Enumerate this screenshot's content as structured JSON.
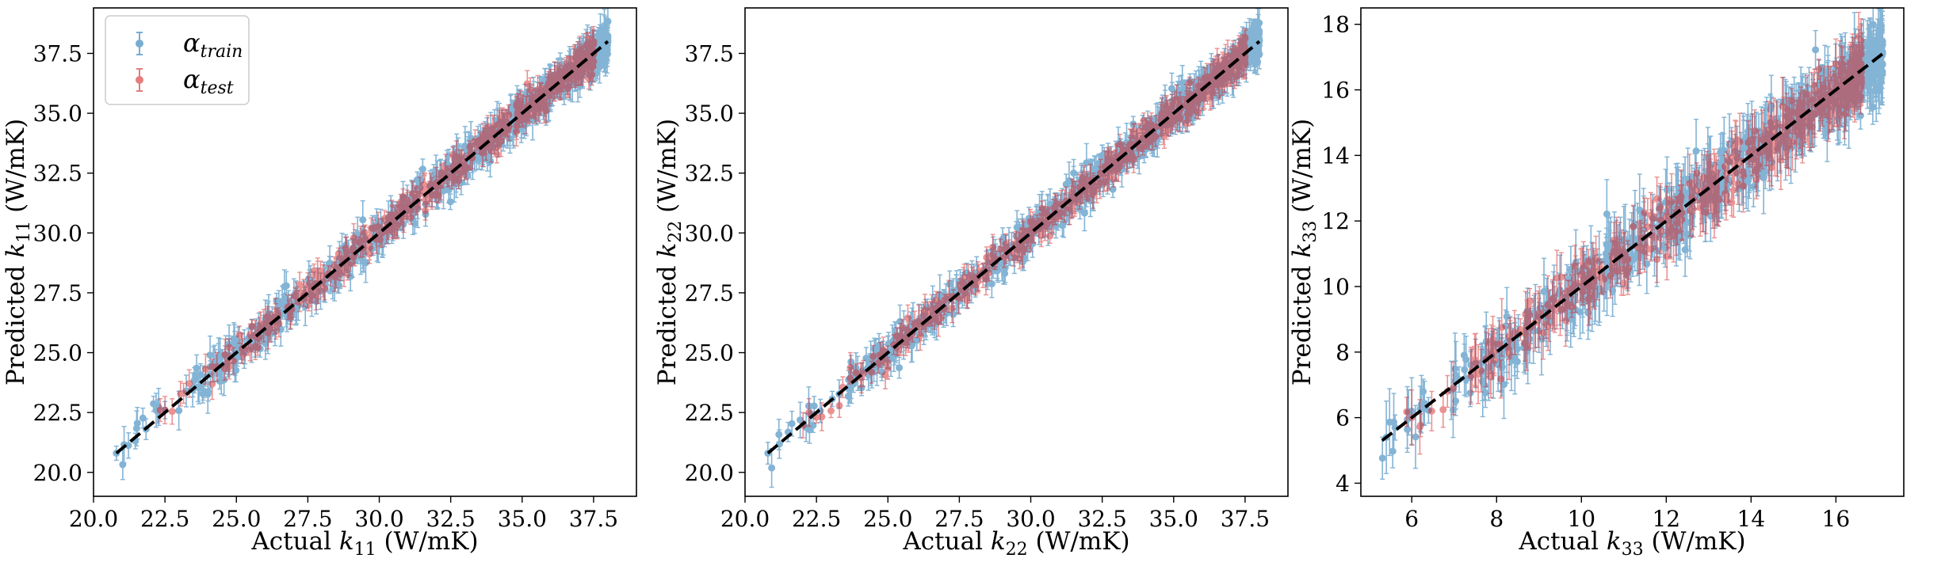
{
  "colors": {
    "train": "#1f77b4",
    "test": "#d62728",
    "ideal_line": "#000000"
  },
  "legend": {
    "placement": "upper-left",
    "entries": [
      {
        "series": "train",
        "base": "α",
        "sub": "train"
      },
      {
        "series": "test",
        "base": "α",
        "sub": "test"
      }
    ]
  },
  "chart_data": [
    {
      "type": "scatter",
      "id": "k11",
      "xlabel": {
        "pre": "Actual ",
        "sym": "k",
        "sub": "11",
        "post": " (W/mK)"
      },
      "ylabel": {
        "pre": "Predicted ",
        "sym": "k",
        "sub": "11",
        "post": " (W/mK)"
      },
      "xlim": [
        20.0,
        39.0
      ],
      "ylim": [
        19.0,
        39.4
      ],
      "xticks": [
        "20.0",
        "22.5",
        "25.0",
        "27.5",
        "30.0",
        "32.5",
        "35.0",
        "37.5"
      ],
      "yticks": [
        "20.0",
        "22.5",
        "25.0",
        "27.5",
        "30.0",
        "32.5",
        "35.0",
        "37.5"
      ],
      "grid": false,
      "has_legend": true,
      "ideal_line": [
        [
          20.8,
          20.8
        ],
        [
          38.0,
          38.0
        ]
      ],
      "series": [
        {
          "key": "train",
          "x_range": [
            20.8,
            38.0
          ],
          "spread": 0.35,
          "err": 0.55,
          "points": [
            [
              20.8,
              20.8
            ],
            [
              22.5,
              22.6
            ],
            [
              30.0,
              30.0
            ],
            [
              37.9,
              37.8
            ]
          ]
        },
        {
          "key": "test",
          "x_range": [
            22.3,
            37.5
          ],
          "spread": 0.3,
          "err": 0.45,
          "points": [
            [
              22.5,
              22.6
            ],
            [
              26.8,
              26.9
            ],
            [
              32.0,
              32.1
            ],
            [
              35.0,
              35.0
            ]
          ]
        }
      ]
    },
    {
      "type": "scatter",
      "id": "k22",
      "xlabel": {
        "pre": "Actual ",
        "sym": "k",
        "sub": "22",
        "post": " (W/mK)"
      },
      "ylabel": {
        "pre": "Predicted ",
        "sym": "k",
        "sub": "22",
        "post": " (W/mK)"
      },
      "xlim": [
        20.0,
        39.0
      ],
      "ylim": [
        19.0,
        39.4
      ],
      "xticks": [
        "20.0",
        "22.5",
        "25.0",
        "27.5",
        "30.0",
        "32.5",
        "35.0",
        "37.5"
      ],
      "yticks": [
        "20.0",
        "22.5",
        "25.0",
        "27.5",
        "30.0",
        "32.5",
        "35.0",
        "37.5"
      ],
      "grid": false,
      "has_legend": false,
      "ideal_line": [
        [
          20.8,
          20.8
        ],
        [
          38.0,
          38.0
        ]
      ],
      "series": [
        {
          "key": "train",
          "x_range": [
            20.8,
            38.0
          ],
          "spread": 0.35,
          "err": 0.55,
          "points": [
            [
              20.8,
              20.8
            ],
            [
              25.0,
              25.0
            ],
            [
              30.0,
              30.0
            ],
            [
              37.8,
              37.9
            ]
          ]
        },
        {
          "key": "test",
          "x_range": [
            22.0,
            37.5
          ],
          "spread": 0.3,
          "err": 0.45,
          "points": [
            [
              22.5,
              22.3
            ],
            [
              28.0,
              28.1
            ],
            [
              33.0,
              33.1
            ],
            [
              36.0,
              36.0
            ]
          ]
        }
      ]
    },
    {
      "type": "scatter",
      "id": "k33",
      "xlabel": {
        "pre": "Actual ",
        "sym": "k",
        "sub": "33",
        "post": " (W/mK)"
      },
      "ylabel": {
        "pre": "Predicted ",
        "sym": "k",
        "sub": "33",
        "post": " (W/mK)"
      },
      "xlim": [
        4.8,
        17.6
      ],
      "ylim": [
        3.6,
        18.5
      ],
      "xticks": [
        "6",
        "8",
        "10",
        "12",
        "14",
        "16"
      ],
      "yticks": [
        "4",
        "6",
        "8",
        "10",
        "12",
        "14",
        "16",
        "18"
      ],
      "grid": false,
      "has_legend": false,
      "ideal_line": [
        [
          5.3,
          5.3
        ],
        [
          17.1,
          17.1
        ]
      ],
      "series": [
        {
          "key": "train",
          "x_range": [
            5.3,
            17.1
          ],
          "spread": 0.45,
          "err": 0.75,
          "points": [
            [
              5.4,
              5.4
            ],
            [
              6.0,
              6.2
            ],
            [
              10.0,
              10.0
            ],
            [
              17.1,
              17.1
            ]
          ]
        },
        {
          "key": "test",
          "x_range": [
            5.8,
            16.6
          ],
          "spread": 0.4,
          "err": 0.6,
          "points": [
            [
              6.0,
              6.0
            ],
            [
              9.5,
              9.3
            ],
            [
              12.0,
              12.1
            ],
            [
              16.5,
              16.4
            ]
          ]
        }
      ]
    }
  ]
}
